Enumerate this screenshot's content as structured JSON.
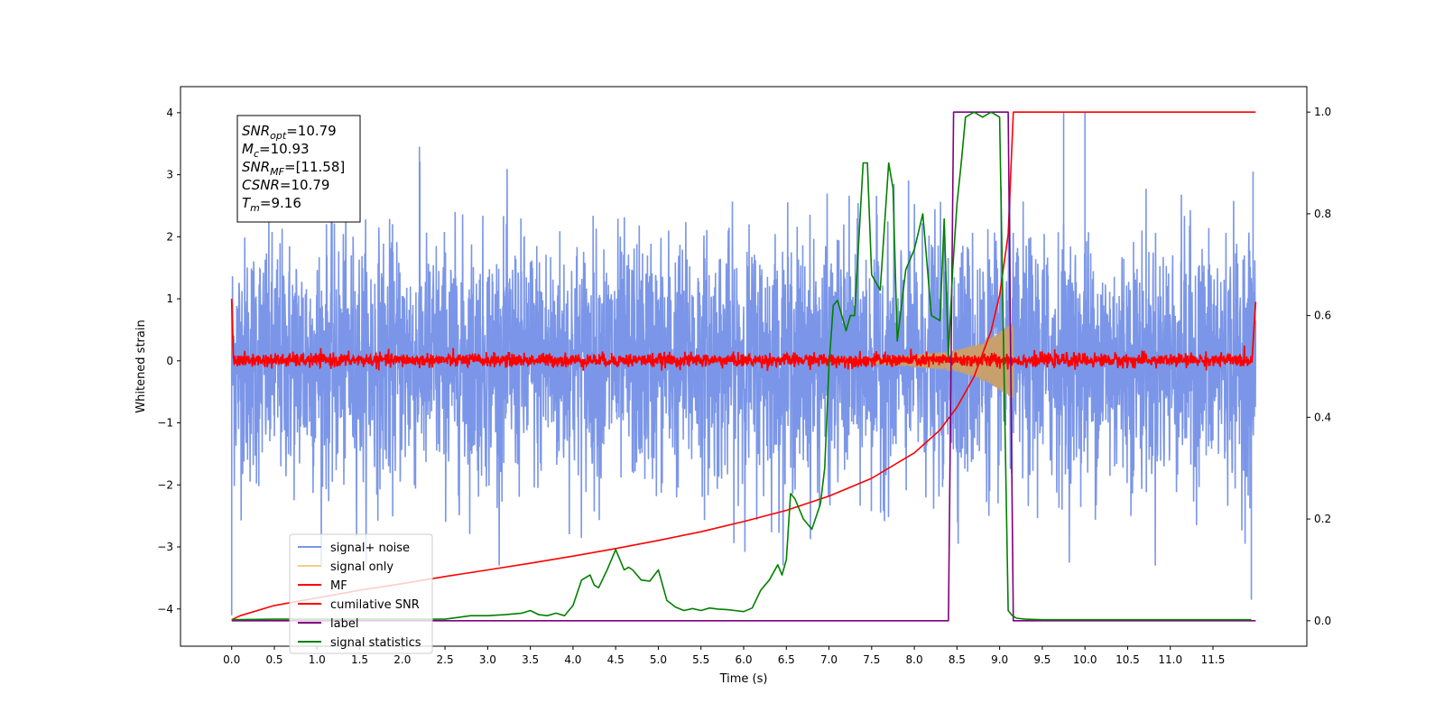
{
  "chart_data": {
    "type": "line",
    "xlabel": "Time (s)",
    "ylabel": "Whitened strain",
    "xlim": [
      -0.6,
      12.6
    ],
    "ylim": [
      -4.6,
      4.42
    ],
    "y2lim": [
      -0.05,
      1.05
    ],
    "x_ticks": [
      0.0,
      0.5,
      1.0,
      1.5,
      2.0,
      2.5,
      3.0,
      3.5,
      4.0,
      4.5,
      5.0,
      5.5,
      6.0,
      6.5,
      7.0,
      7.5,
      8.0,
      8.5,
      9.0,
      9.5,
      10.0,
      10.5,
      11.0,
      11.5
    ],
    "x_tick_labels": [
      "0.0",
      "0.5",
      "1.0",
      "1.5",
      "2.0",
      "2.5",
      "3.0",
      "3.5",
      "4.0",
      "4.5",
      "5.0",
      "5.5",
      "6.0",
      "6.5",
      "7.0",
      "7.5",
      "8.0",
      "8.5",
      "9.0",
      "9.5",
      "10.0",
      "10.5",
      "11.0",
      "11.5"
    ],
    "y_ticks": [
      -4,
      -3,
      -2,
      -1,
      0,
      1,
      2,
      3,
      4
    ],
    "y_tick_labels": [
      "−4",
      "−3",
      "−2",
      "−1",
      "0",
      "1",
      "2",
      "3",
      "4"
    ],
    "y2_ticks": [
      0.0,
      0.2,
      0.4,
      0.6,
      0.8,
      1.0
    ],
    "y2_tick_labels": [
      "0.0",
      "0.2",
      "0.4",
      "0.6",
      "0.8",
      "1.0"
    ],
    "grid": false,
    "legend_position": "lower-left",
    "info_box": {
      "lines": [
        {
          "main": "SNR",
          "sub": "opt",
          "value": "=10.79"
        },
        {
          "main": "M",
          "sub": "c",
          "value": "=10.93"
        },
        {
          "main": "SNR",
          "sub": "MF",
          "value": "=[11.58]"
        },
        {
          "main": "CSNR",
          "sub": "",
          "value": "=10.79"
        },
        {
          "main": "T",
          "sub": "m",
          "value": "=9.16"
        }
      ]
    },
    "series": [
      {
        "name": "signal+ noise",
        "color": "#7b96e8",
        "kind": "noise",
        "x_range": [
          0.0,
          12.0
        ],
        "typical_band": [
          -1.9,
          2.0
        ],
        "notable_peaks": [
          {
            "x": 0.0,
            "y": -4.1
          },
          {
            "x": 2.2,
            "y": 3.45
          },
          {
            "x": 9.75,
            "y": 4.0
          },
          {
            "x": 10.0,
            "y": 4.0
          },
          {
            "x": 11.95,
            "y": -3.85
          },
          {
            "x": 11.97,
            "y": 3.05
          }
        ]
      },
      {
        "name": "signal only",
        "color": "#f5cf80",
        "kind": "chirp",
        "x": [
          7.0,
          7.5,
          8.0,
          8.3,
          8.5,
          8.7,
          8.9,
          9.05,
          9.16
        ],
        "amplitude": [
          0.03,
          0.05,
          0.1,
          0.14,
          0.18,
          0.25,
          0.38,
          0.52,
          0.62
        ]
      },
      {
        "name": "MF",
        "color": "#ff0000",
        "kind": "mf",
        "start_value": 1.0,
        "end_value": 0.95,
        "typical_band": [
          -0.12,
          0.15
        ]
      },
      {
        "name": "cumilative SNR",
        "color": "#ff0000",
        "kind": "line",
        "axis": "right",
        "x": [
          0.0,
          0.1,
          0.5,
          1.0,
          1.5,
          2.0,
          2.5,
          3.0,
          3.5,
          4.0,
          4.5,
          5.0,
          5.5,
          6.0,
          6.5,
          7.0,
          7.5,
          8.0,
          8.3,
          8.5,
          8.7,
          8.9,
          9.0,
          9.1,
          9.16,
          12.0
        ],
        "y": [
          0.002,
          0.01,
          0.03,
          0.045,
          0.06,
          0.073,
          0.087,
          0.1,
          0.113,
          0.127,
          0.142,
          0.158,
          0.175,
          0.195,
          0.217,
          0.245,
          0.28,
          0.33,
          0.375,
          0.42,
          0.48,
          0.57,
          0.64,
          0.76,
          1.0,
          1.0
        ]
      },
      {
        "name": "label",
        "color": "#800080",
        "kind": "line",
        "axis": "right",
        "x": [
          0.0,
          8.4,
          8.46,
          9.1,
          9.16,
          12.0
        ],
        "y": [
          0.0,
          0.0,
          1.0,
          1.0,
          0.0,
          0.0
        ]
      },
      {
        "name": "signal statistics",
        "color": "#008000",
        "kind": "line",
        "axis": "right",
        "x": [
          0.0,
          0.5,
          1.0,
          1.5,
          2.0,
          2.5,
          2.8,
          3.0,
          3.2,
          3.4,
          3.5,
          3.6,
          3.7,
          3.8,
          3.9,
          4.0,
          4.1,
          4.2,
          4.25,
          4.3,
          4.4,
          4.5,
          4.6,
          4.65,
          4.7,
          4.8,
          4.9,
          5.0,
          5.1,
          5.2,
          5.3,
          5.4,
          5.5,
          5.6,
          5.7,
          5.8,
          5.9,
          6.0,
          6.1,
          6.2,
          6.3,
          6.4,
          6.45,
          6.5,
          6.55,
          6.6,
          6.7,
          6.8,
          6.9,
          6.95,
          7.0,
          7.05,
          7.1,
          7.2,
          7.25,
          7.3,
          7.4,
          7.45,
          7.5,
          7.6,
          7.7,
          7.75,
          7.8,
          7.9,
          8.0,
          8.1,
          8.2,
          8.3,
          8.35,
          8.4,
          8.45,
          8.5,
          8.55,
          8.6,
          8.7,
          8.8,
          8.9,
          9.0,
          9.05,
          9.1,
          9.15,
          9.2,
          9.3,
          9.5,
          10.0,
          11.0,
          11.95
        ],
        "y": [
          0.002,
          0.003,
          0.003,
          0.003,
          0.003,
          0.003,
          0.01,
          0.01,
          0.012,
          0.015,
          0.02,
          0.012,
          0.01,
          0.015,
          0.01,
          0.03,
          0.08,
          0.09,
          0.07,
          0.065,
          0.1,
          0.14,
          0.1,
          0.105,
          0.1,
          0.08,
          0.078,
          0.1,
          0.04,
          0.027,
          0.02,
          0.024,
          0.02,
          0.025,
          0.023,
          0.022,
          0.02,
          0.018,
          0.025,
          0.06,
          0.08,
          0.11,
          0.09,
          0.12,
          0.25,
          0.24,
          0.2,
          0.18,
          0.23,
          0.3,
          0.5,
          0.62,
          0.63,
          0.57,
          0.6,
          0.6,
          0.9,
          0.9,
          0.68,
          0.65,
          0.9,
          0.85,
          0.55,
          0.69,
          0.73,
          0.8,
          0.6,
          0.59,
          0.79,
          0.52,
          0.69,
          0.82,
          0.9,
          0.99,
          1.0,
          0.99,
          1.0,
          0.99,
          0.5,
          0.02,
          0.01,
          0.005,
          0.003,
          0.002,
          0.002,
          0.002,
          0.002
        ]
      }
    ]
  }
}
